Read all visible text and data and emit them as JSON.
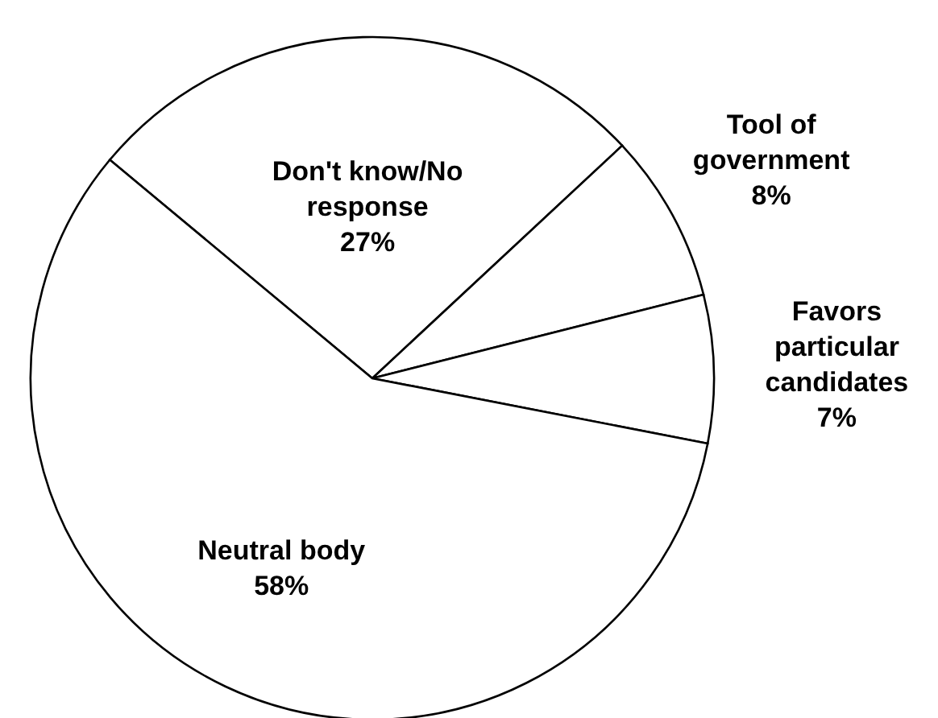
{
  "chart_data": {
    "type": "pie",
    "categories": [
      "Don't know/No response",
      "Tool of government",
      "Favors particular candidates",
      "Neutral body"
    ],
    "values": [
      27,
      8,
      7,
      58
    ],
    "colors": [
      "#ffffff",
      "#ffffff",
      "#ffffff",
      "#ffffff"
    ],
    "value_labels": [
      "27%",
      "8%",
      "7%",
      "58%"
    ]
  }
}
